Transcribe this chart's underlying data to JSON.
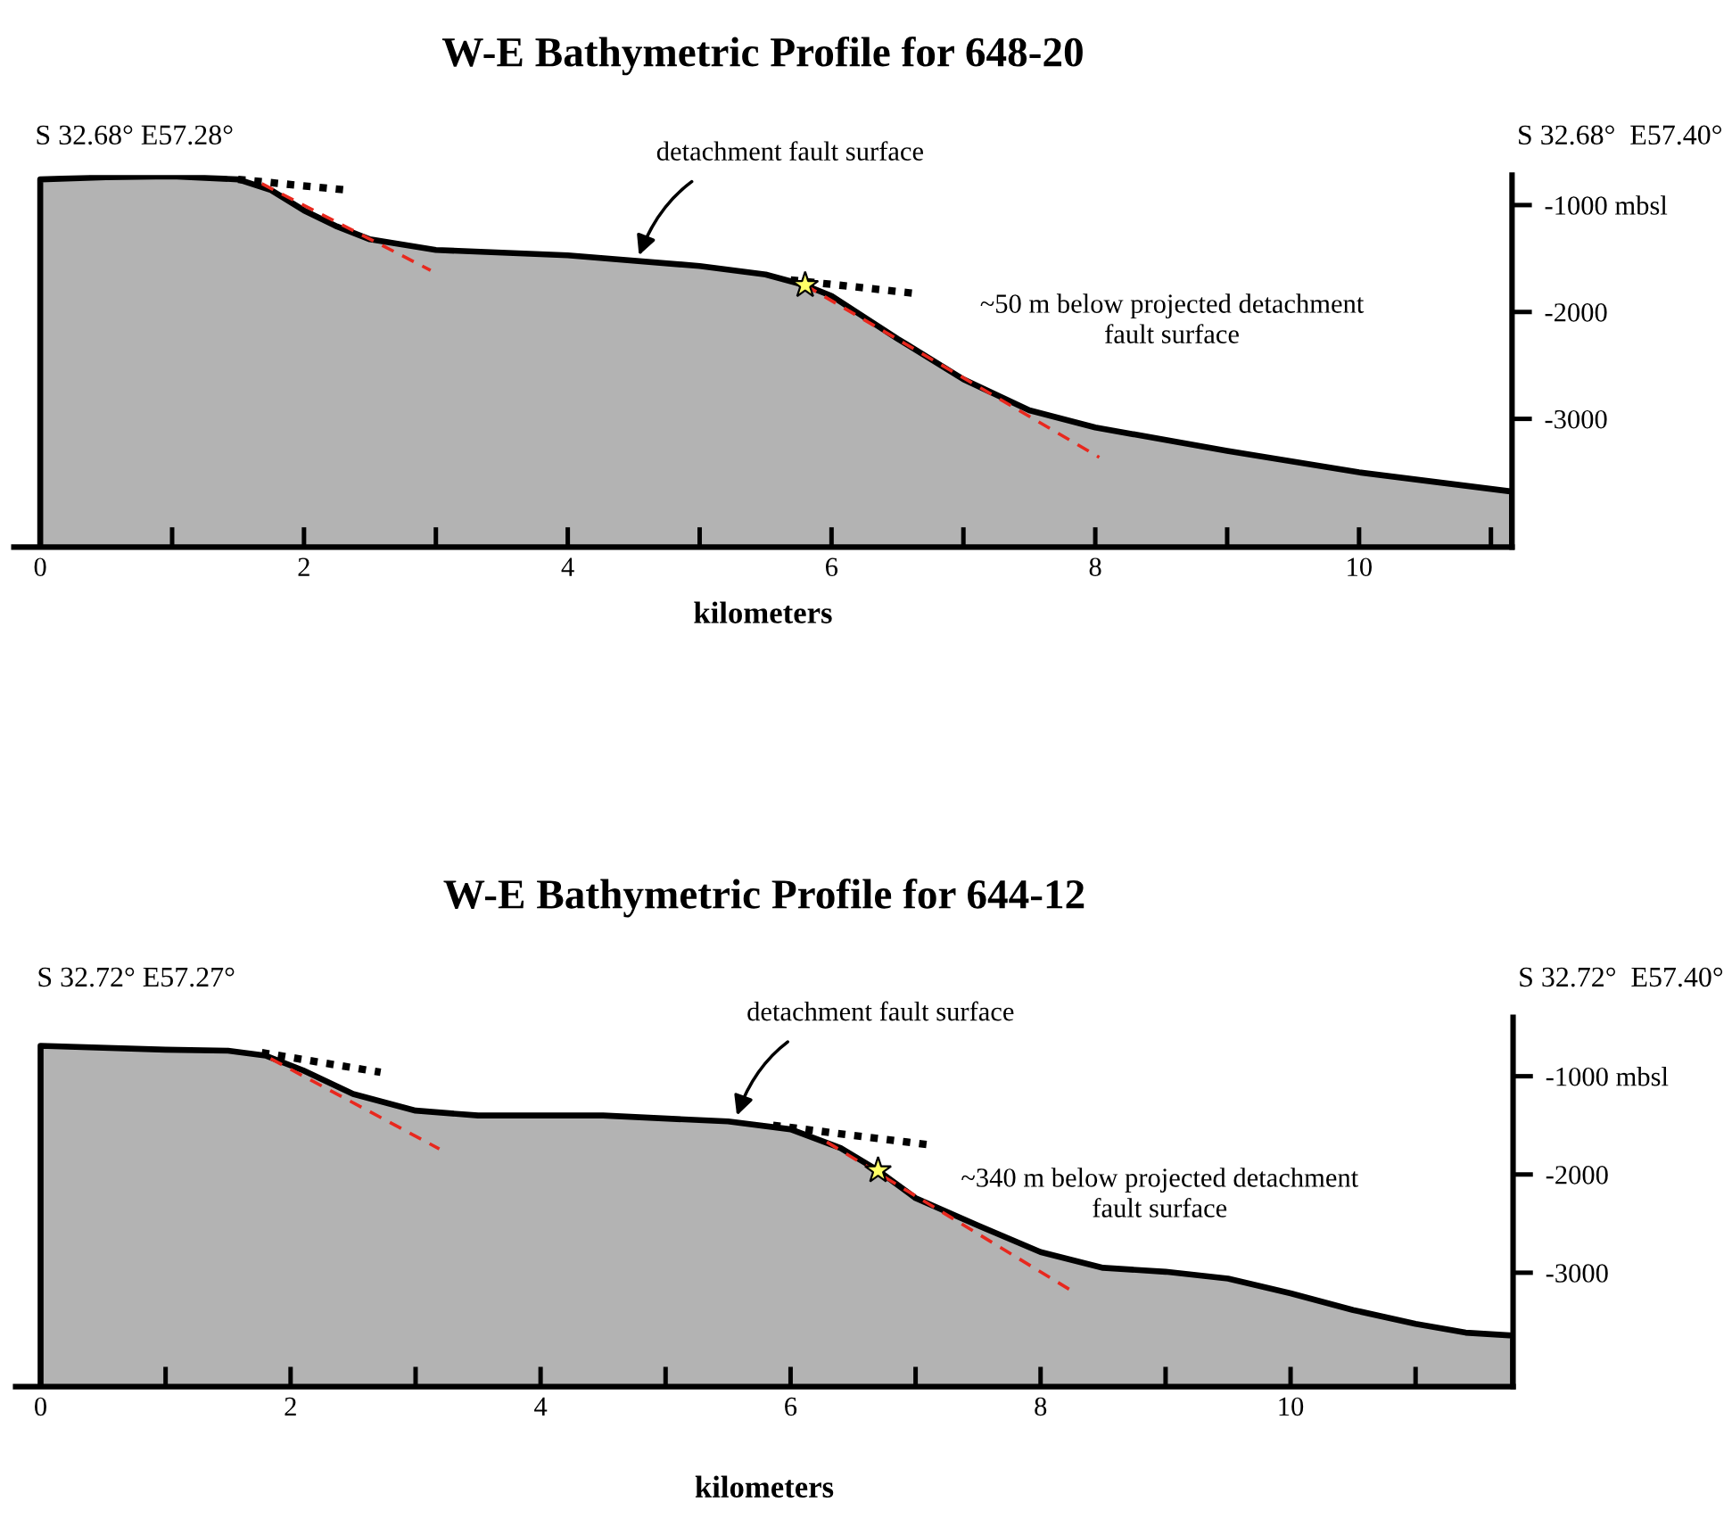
{
  "chart_data": [
    {
      "type": "area",
      "title": "W-E Bathymetric Profile for 648-20",
      "xlabel": "kilometers",
      "xlim": [
        -0.2,
        11.16
      ],
      "ylim": [
        -4200,
        -720
      ],
      "xticks": [
        0,
        {
          "value": 1,
          "label": null
        },
        2,
        {
          "value": 3,
          "label": null
        },
        4,
        {
          "value": 5,
          "label": null
        },
        6,
        {
          "value": 7,
          "label": null
        },
        8,
        {
          "value": 9,
          "label": null
        },
        10,
        {
          "value": 11,
          "label": null
        }
      ],
      "yticks": [
        {
          "value": -1000,
          "label": "-1000 mbsl"
        },
        {
          "value": -2000,
          "label": "-2000"
        },
        {
          "value": -3000,
          "label": "-3000"
        }
      ],
      "series": [
        {
          "color": "#b3b3b3",
          "x": [
            0,
            0.5,
            1,
            1.5,
            1.75,
            2,
            2.25,
            2.5,
            3,
            4,
            5,
            5.5,
            5.8,
            6,
            6.5,
            7,
            7.5,
            8,
            9,
            10,
            11.16
          ],
          "values": [
            -760,
            -740,
            -730,
            -760,
            -860,
            -1050,
            -1200,
            -1320,
            -1420,
            -1470,
            -1570,
            -1650,
            -1750,
            -1850,
            -2250,
            -2630,
            -2920,
            -3080,
            -3300,
            -3500,
            -3680
          ]
        },
        {
          "type": "line",
          "color": "#e8281e",
          "line_style": "dashed",
          "x": [
            1.68,
            2.96
          ],
          "values": [
            -800,
            -1610
          ]
        },
        {
          "type": "line",
          "color": "#e8281e",
          "line_style": "dashed",
          "x": [
            5.8,
            8.03
          ],
          "values": [
            -1750,
            -3360
          ]
        },
        {
          "type": "line",
          "color": "#000000",
          "line_style": "dotted",
          "x": [
            1.5,
            2.33
          ],
          "values": [
            -760,
            -860
          ]
        },
        {
          "type": "line",
          "color": "#000000",
          "line_style": "dotted",
          "x": [
            5.69,
            6.66
          ],
          "values": [
            -1700,
            -1830
          ]
        },
        {
          "type": "scatter",
          "color": "#ffff66",
          "marker": "star",
          "x": [
            5.8
          ],
          "values": [
            -1750
          ]
        }
      ],
      "annotations": [
        "S 32.68° E57.28°",
        "S 32.68°  E57.40°",
        {
          "text": "detachment fault surface",
          "x": 4.54,
          "y": -1470
        },
        "~50 m below projected detachment\nfault surface"
      ]
    },
    {
      "type": "area",
      "title": "W-E Bathymetric Profile for 644-12",
      "xlabel": "kilometers",
      "xlim": [
        -0.2,
        11.78
      ],
      "ylim": [
        -4160,
        -400
      ],
      "xticks": [
        0,
        {
          "value": 1,
          "label": null
        },
        2,
        {
          "value": 3,
          "label": null
        },
        4,
        {
          "value": 5,
          "label": null
        },
        6,
        {
          "value": 7,
          "label": null
        },
        8,
        {
          "value": 9,
          "label": null
        },
        10,
        {
          "value": 11,
          "label": null
        }
      ],
      "yticks": [
        {
          "value": -1000,
          "label": "-1000 mbsl"
        },
        {
          "value": -2000,
          "label": "-2000"
        },
        {
          "value": -3000,
          "label": "-3000"
        }
      ],
      "series": [
        {
          "color": "#b3b3b3",
          "x": [
            0,
            1,
            1.5,
            1.8,
            2.1,
            2.5,
            3,
            3.5,
            4.5,
            5.5,
            6,
            6.4,
            6.7,
            7,
            7.5,
            8,
            8.5,
            9,
            9.5,
            10,
            10.5,
            11,
            11.4,
            11.78
          ],
          "values": [
            -690,
            -730,
            -740,
            -790,
            -940,
            -1180,
            -1350,
            -1400,
            -1400,
            -1460,
            -1540,
            -1730,
            -1960,
            -2240,
            -2520,
            -2790,
            -2950,
            -2990,
            -3060,
            -3210,
            -3380,
            -3520,
            -3610,
            -3640
          ]
        },
        {
          "type": "line",
          "color": "#e8281e",
          "line_style": "dashed",
          "x": [
            1.84,
            3.19
          ],
          "values": [
            -820,
            -1740
          ]
        },
        {
          "type": "line",
          "color": "#e8281e",
          "line_style": "dashed",
          "x": [
            6.29,
            8.27
          ],
          "values": [
            -1670,
            -3200
          ]
        },
        {
          "type": "line",
          "color": "#000000",
          "line_style": "dotted",
          "x": [
            1.77,
            2.72
          ],
          "values": [
            -760,
            -960
          ]
        },
        {
          "type": "line",
          "color": "#000000",
          "line_style": "dotted",
          "x": [
            5.86,
            7.12
          ],
          "values": [
            -1500,
            -1700
          ]
        },
        {
          "type": "scatter",
          "color": "#ffff66",
          "marker": "star",
          "x": [
            6.7
          ],
          "values": [
            -1960
          ]
        }
      ],
      "annotations": [
        "S 32.72° E57.27°",
        "S 32.72°  E57.40°",
        {
          "text": "detachment fault surface",
          "x": 5.57,
          "y": -1400
        },
        "~340 m below projected detachment\nfault surface"
      ]
    }
  ]
}
